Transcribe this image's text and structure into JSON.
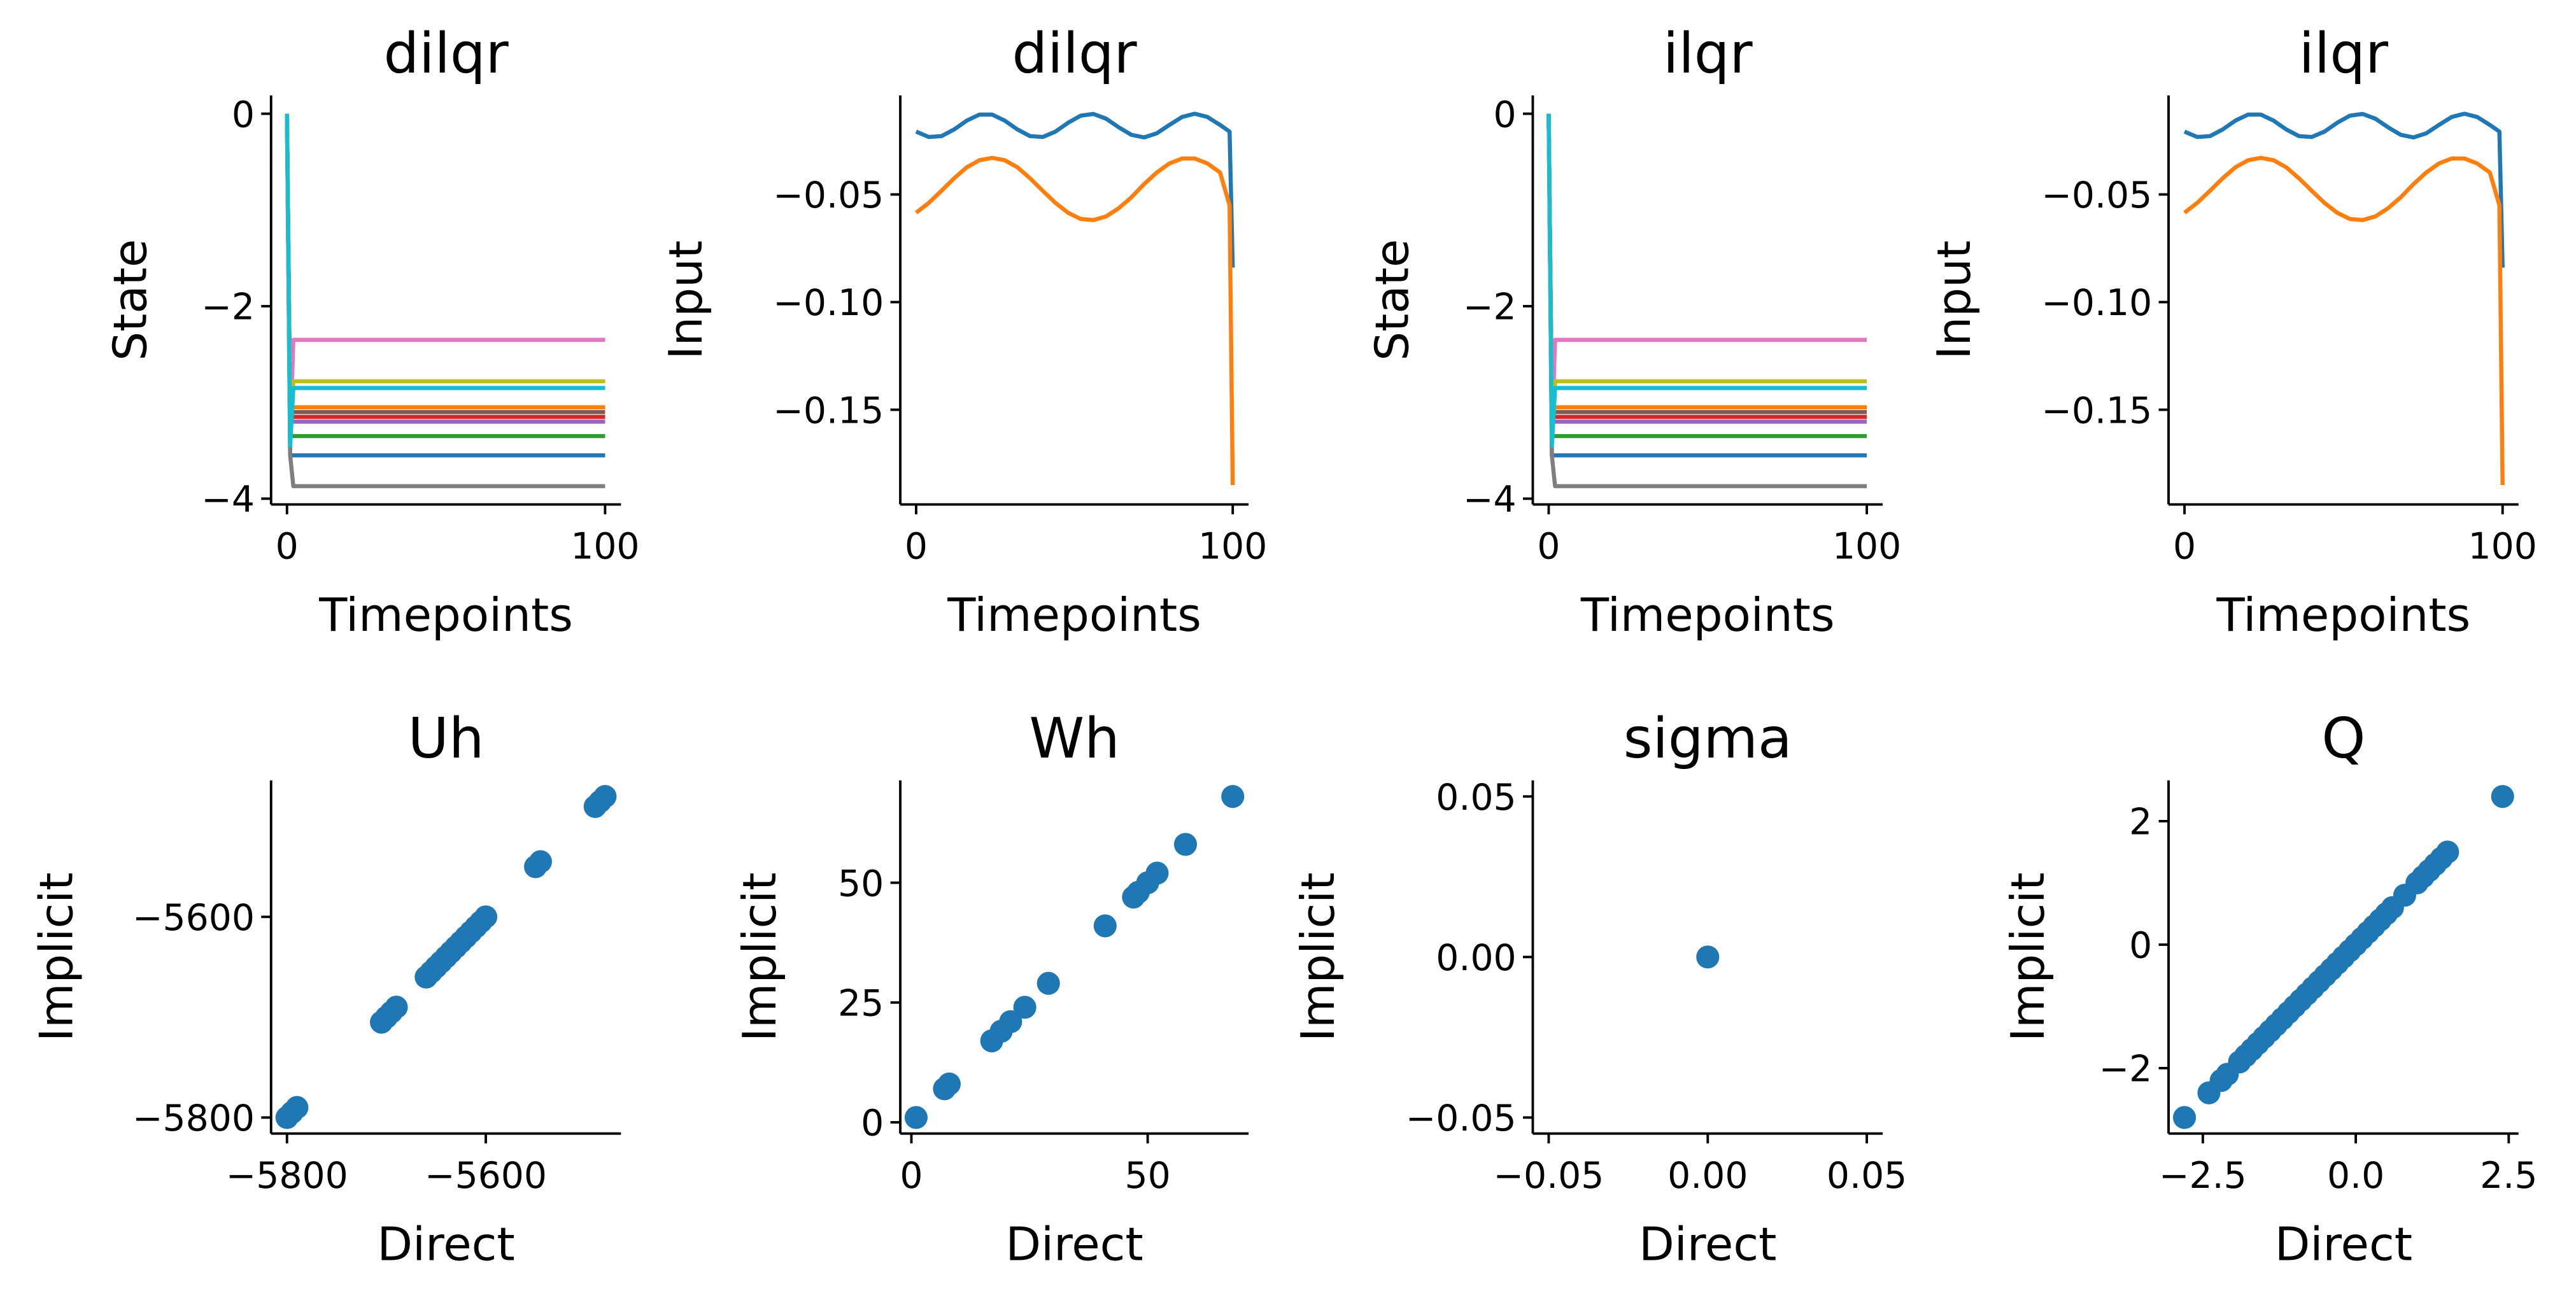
{
  "chart_data": [
    {
      "type": "line",
      "title": "dilqr",
      "xlabel": "Timepoints",
      "ylabel": "State",
      "x": [
        0,
        1,
        2,
        100
      ],
      "series": [
        {
          "color": "#1f77b4",
          "values": [
            0,
            -3.55,
            -3.55,
            -3.55
          ]
        },
        {
          "color": "#ff7f0e",
          "values": [
            0,
            -3.05,
            -3.05,
            -3.05
          ]
        },
        {
          "color": "#2ca02c",
          "values": [
            0,
            -3.35,
            -3.35,
            -3.35
          ]
        },
        {
          "color": "#d62728",
          "values": [
            0,
            -3.15,
            -3.15,
            -3.15
          ]
        },
        {
          "color": "#9467bd",
          "values": [
            0,
            -3.2,
            -3.2,
            -3.2
          ]
        },
        {
          "color": "#8c564b",
          "values": [
            0,
            -3.1,
            -3.1,
            -3.1
          ]
        },
        {
          "color": "#e377c2",
          "values": [
            0,
            -3.4,
            -2.35,
            -2.35
          ]
        },
        {
          "color": "#7f7f7f",
          "values": [
            0,
            -3.55,
            -3.87,
            -3.87
          ]
        },
        {
          "color": "#bcbd22",
          "values": [
            0,
            -3.3,
            -2.78,
            -2.78
          ]
        },
        {
          "color": "#17becf",
          "values": [
            0,
            -3.45,
            -2.85,
            -2.85
          ]
        }
      ],
      "xlim": [
        -5,
        105
      ],
      "ylim": [
        -4.06,
        0.19
      ],
      "xticks": [
        0,
        100
      ],
      "yticks": [
        {
          "value": -4,
          "label": "−4"
        },
        {
          "value": -2,
          "label": "−2"
        },
        0
      ]
    },
    {
      "type": "line",
      "title": "dilqr",
      "xlabel": "Timepoints",
      "ylabel": "Input",
      "x": [
        0,
        4,
        8,
        12,
        16,
        20,
        24,
        28,
        32,
        36,
        40,
        44,
        48,
        52,
        56,
        60,
        64,
        68,
        72,
        76,
        80,
        84,
        88,
        92,
        96,
        99,
        100
      ],
      "series": [
        {
          "color": "#1f77b4",
          "values": [
            -0.0208,
            -0.0233,
            -0.0229,
            -0.0198,
            -0.0157,
            -0.0129,
            -0.0129,
            -0.0157,
            -0.0198,
            -0.0229,
            -0.0233,
            -0.0208,
            -0.0167,
            -0.0134,
            -0.0126,
            -0.0148,
            -0.0188,
            -0.0223,
            -0.0235,
            -0.0216,
            -0.0177,
            -0.014,
            -0.0125,
            -0.014,
            -0.0177,
            -0.0208,
            -0.084
          ]
        },
        {
          "color": "#ff7f0e",
          "values": [
            -0.0585,
            -0.0539,
            -0.0483,
            -0.0425,
            -0.0374,
            -0.0341,
            -0.033,
            -0.0341,
            -0.0374,
            -0.0425,
            -0.0483,
            -0.0539,
            -0.0585,
            -0.0614,
            -0.0619,
            -0.0602,
            -0.0564,
            -0.0513,
            -0.0452,
            -0.0398,
            -0.0356,
            -0.0333,
            -0.0333,
            -0.0356,
            -0.0398,
            -0.055,
            -0.185
          ]
        }
      ],
      "xlim": [
        -5,
        105
      ],
      "ylim": [
        -0.194,
        -0.004
      ],
      "xticks": [
        0,
        100
      ],
      "yticks": [
        {
          "value": -0.05,
          "label": "−0.05"
        },
        {
          "value": -0.1,
          "label": "−0.10"
        },
        {
          "value": -0.15,
          "label": "−0.15"
        }
      ]
    },
    {
      "type": "line",
      "title": "ilqr",
      "xlabel": "Timepoints",
      "ylabel": "State",
      "x": [
        0,
        1,
        2,
        100
      ],
      "series": [
        {
          "color": "#1f77b4",
          "values": [
            0,
            -3.55,
            -3.55,
            -3.55
          ]
        },
        {
          "color": "#ff7f0e",
          "values": [
            0,
            -3.05,
            -3.05,
            -3.05
          ]
        },
        {
          "color": "#2ca02c",
          "values": [
            0,
            -3.35,
            -3.35,
            -3.35
          ]
        },
        {
          "color": "#d62728",
          "values": [
            0,
            -3.15,
            -3.15,
            -3.15
          ]
        },
        {
          "color": "#9467bd",
          "values": [
            0,
            -3.2,
            -3.2,
            -3.2
          ]
        },
        {
          "color": "#8c564b",
          "values": [
            0,
            -3.1,
            -3.1,
            -3.1
          ]
        },
        {
          "color": "#e377c2",
          "values": [
            0,
            -3.4,
            -2.35,
            -2.35
          ]
        },
        {
          "color": "#7f7f7f",
          "values": [
            0,
            -3.55,
            -3.87,
            -3.87
          ]
        },
        {
          "color": "#bcbd22",
          "values": [
            0,
            -3.3,
            -2.78,
            -2.78
          ]
        },
        {
          "color": "#17becf",
          "values": [
            0,
            -3.45,
            -2.85,
            -2.85
          ]
        }
      ],
      "xlim": [
        -5,
        105
      ],
      "ylim": [
        -4.06,
        0.19
      ],
      "xticks": [
        0,
        100
      ],
      "yticks": [
        {
          "value": -4,
          "label": "−4"
        },
        {
          "value": -2,
          "label": "−2"
        },
        0
      ]
    },
    {
      "type": "line",
      "title": "ilqr",
      "xlabel": "Timepoints",
      "ylabel": "Input",
      "x": [
        0,
        4,
        8,
        12,
        16,
        20,
        24,
        28,
        32,
        36,
        40,
        44,
        48,
        52,
        56,
        60,
        64,
        68,
        72,
        76,
        80,
        84,
        88,
        92,
        96,
        99,
        100
      ],
      "series": [
        {
          "color": "#1f77b4",
          "values": [
            -0.0208,
            -0.0233,
            -0.0229,
            -0.0198,
            -0.0157,
            -0.0129,
            -0.0129,
            -0.0157,
            -0.0198,
            -0.0229,
            -0.0233,
            -0.0208,
            -0.0167,
            -0.0134,
            -0.0126,
            -0.0148,
            -0.0188,
            -0.0223,
            -0.0235,
            -0.0216,
            -0.0177,
            -0.014,
            -0.0125,
            -0.014,
            -0.0177,
            -0.0208,
            -0.084
          ]
        },
        {
          "color": "#ff7f0e",
          "values": [
            -0.0585,
            -0.0539,
            -0.0483,
            -0.0425,
            -0.0374,
            -0.0341,
            -0.033,
            -0.0341,
            -0.0374,
            -0.0425,
            -0.0483,
            -0.0539,
            -0.0585,
            -0.0614,
            -0.0619,
            -0.0602,
            -0.0564,
            -0.0513,
            -0.0452,
            -0.0398,
            -0.0356,
            -0.0333,
            -0.0333,
            -0.0356,
            -0.0398,
            -0.055,
            -0.185
          ]
        }
      ],
      "xlim": [
        -5,
        105
      ],
      "ylim": [
        -0.194,
        -0.004
      ],
      "xticks": [
        0,
        100
      ],
      "yticks": [
        {
          "value": -0.05,
          "label": "−0.05"
        },
        {
          "value": -0.1,
          "label": "−0.10"
        },
        {
          "value": -0.15,
          "label": "−0.15"
        }
      ]
    },
    {
      "type": "scatter",
      "title": "Uh",
      "xlabel": "Direct",
      "ylabel": "Implicit",
      "color": "#1f77b4",
      "x": [
        -5800,
        -5795,
        -5790,
        -5705,
        -5700,
        -5695,
        -5690,
        -5660,
        -5655,
        -5650,
        -5645,
        -5640,
        -5635,
        -5630,
        -5625,
        -5620,
        -5615,
        -5610,
        -5605,
        -5600,
        -5550,
        -5545,
        -5490,
        -5485,
        -5480
      ],
      "values": [
        -5800,
        -5795,
        -5790,
        -5705,
        -5700,
        -5695,
        -5690,
        -5660,
        -5655,
        -5650,
        -5645,
        -5640,
        -5635,
        -5630,
        -5625,
        -5620,
        -5615,
        -5610,
        -5605,
        -5600,
        -5550,
        -5545,
        -5490,
        -5485,
        -5480
      ],
      "xlim": [
        -5816,
        -5464
      ],
      "ylim": [
        -5816,
        -5464
      ],
      "xticks": [
        {
          "value": -5800,
          "label": "−5800"
        },
        {
          "value": -5600,
          "label": "−5600"
        }
      ],
      "yticks": [
        {
          "value": -5800,
          "label": "−5800"
        },
        {
          "value": -5600,
          "label": "−5600"
        }
      ]
    },
    {
      "type": "scatter",
      "title": "Wh",
      "xlabel": "Direct",
      "ylabel": "Implicit",
      "color": "#1f77b4",
      "x": [
        1,
        7,
        8,
        17,
        19,
        21,
        24,
        29,
        41,
        47,
        48,
        50,
        52,
        58,
        68
      ],
      "values": [
        1,
        7,
        8,
        17,
        19,
        21,
        24,
        29,
        41,
        47,
        48,
        50,
        52,
        58,
        68
      ],
      "xlim": [
        -2.35,
        71.35
      ],
      "ylim": [
        -2.35,
        71.35
      ],
      "xticks": [
        0,
        50
      ],
      "yticks": [
        0,
        25,
        50
      ]
    },
    {
      "type": "scatter",
      "title": "sigma",
      "xlabel": "Direct",
      "ylabel": "Implicit",
      "color": "#1f77b4",
      "x": [
        0
      ],
      "values": [
        0
      ],
      "xlim": [
        -0.055,
        0.055
      ],
      "ylim": [
        -0.055,
        0.055
      ],
      "xticks": [
        {
          "value": -0.05,
          "label": "−0.05"
        },
        {
          "value": 0,
          "label": "0.00"
        },
        0.05
      ],
      "yticks": [
        {
          "value": -0.05,
          "label": "−0.05"
        },
        {
          "value": 0,
          "label": "0.00"
        },
        0.05
      ]
    },
    {
      "type": "scatter",
      "title": "Q",
      "xlabel": "Direct",
      "ylabel": "Implicit",
      "color": "#1f77b4",
      "x": [
        -2.8,
        -2.4,
        -2.2,
        -2.1,
        -1.9,
        -1.8,
        -1.7,
        -1.6,
        -1.5,
        -1.4,
        -1.3,
        -1.2,
        -1.1,
        -1.0,
        -0.9,
        -0.8,
        -0.7,
        -0.6,
        -0.5,
        -0.4,
        -0.3,
        -0.2,
        -0.1,
        0,
        0.1,
        0.2,
        0.3,
        0.4,
        0.5,
        0.6,
        0.8,
        1.0,
        1.1,
        1.2,
        1.3,
        1.4,
        1.5,
        2.4
      ],
      "values": [
        -2.8,
        -2.4,
        -2.2,
        -2.1,
        -1.9,
        -1.8,
        -1.7,
        -1.6,
        -1.5,
        -1.4,
        -1.3,
        -1.2,
        -1.1,
        -1.0,
        -0.9,
        -0.8,
        -0.7,
        -0.6,
        -0.5,
        -0.4,
        -0.3,
        -0.2,
        -0.1,
        0,
        0.1,
        0.2,
        0.3,
        0.4,
        0.5,
        0.6,
        0.8,
        1.0,
        1.1,
        1.2,
        1.3,
        1.4,
        1.5,
        2.4
      ],
      "xlim": [
        -3.06,
        2.66
      ],
      "ylim": [
        -3.06,
        2.66
      ],
      "xticks": [
        {
          "value": -2.5,
          "label": "−2.5"
        },
        {
          "value": 0,
          "label": "0.0"
        },
        2.5
      ],
      "yticks": [
        {
          "value": -2,
          "label": "−2"
        },
        0,
        2
      ]
    }
  ]
}
